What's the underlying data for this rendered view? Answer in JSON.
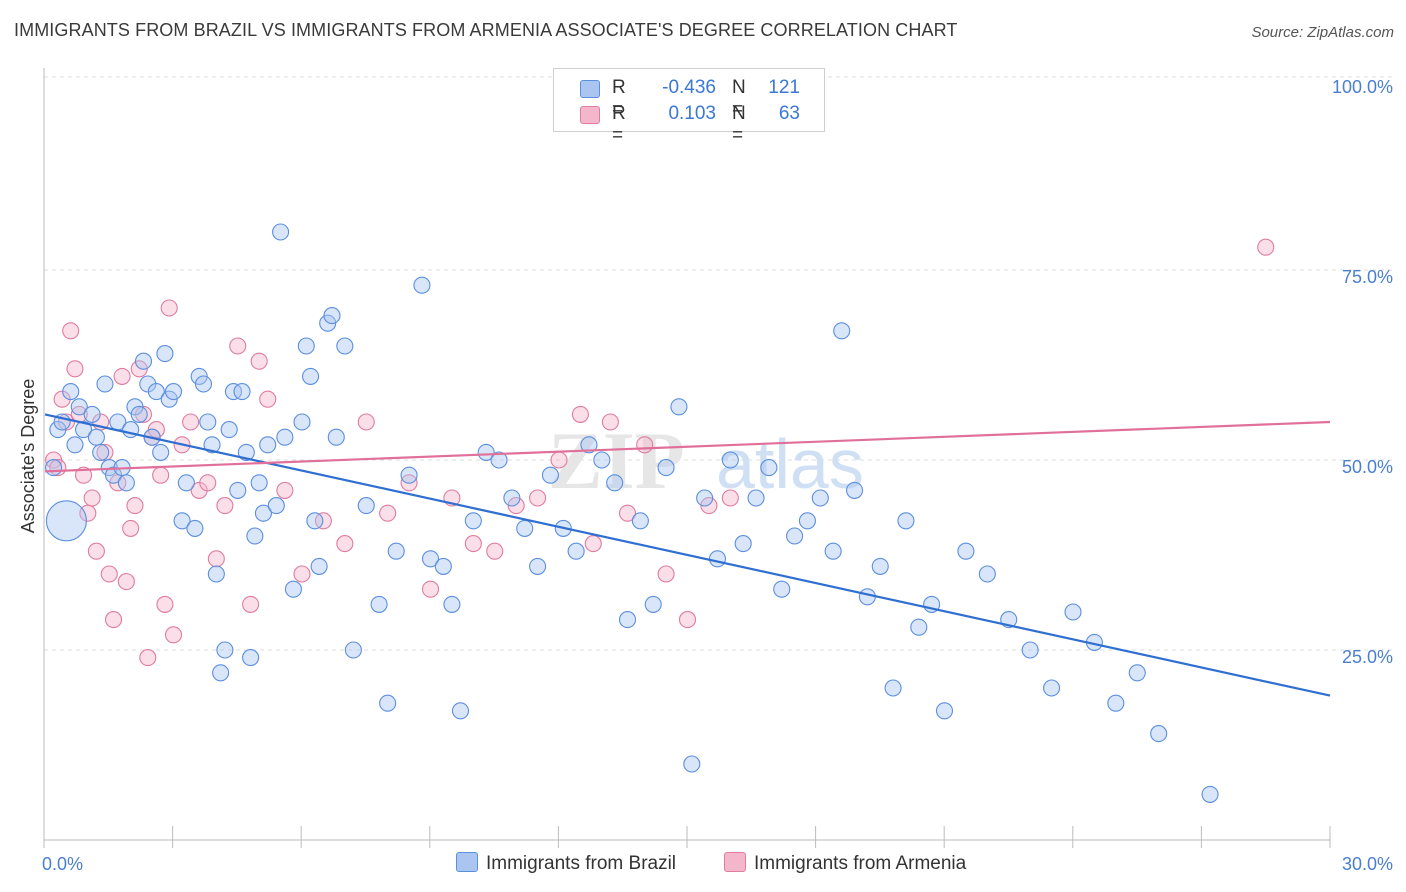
{
  "title": "IMMIGRANTS FROM BRAZIL VS IMMIGRANTS FROM ARMENIA ASSOCIATE'S DEGREE CORRELATION CHART",
  "source": "Source: ZipAtlas.com",
  "watermark": {
    "zip": "ZIP",
    "atlas": "atlas"
  },
  "colors": {
    "blue": "#5b8fe0",
    "blue_fill": "#aac6f0",
    "pink": "#e07ca0",
    "pink_fill": "#f4b6cb",
    "blue_line": "#2f6fd1",
    "pink_line": "#e0709a",
    "accent_text": "#3a78d4"
  },
  "legend": {
    "rows": [
      {
        "r_label": "R =",
        "r_value": "-0.436",
        "n_label": "N =",
        "n_value": "121",
        "color": "#aac6f0",
        "edge": "#5b8fe0"
      },
      {
        "r_label": "R =",
        "r_value": "0.103",
        "n_label": "N =",
        "n_value": "63",
        "color": "#f4b6cb",
        "edge": "#e07ca0"
      }
    ]
  },
  "bottom_legend": {
    "brazil": "Immigrants from Brazil",
    "armenia": "Immigrants from Armenia"
  },
  "chart_data": {
    "type": "scatter",
    "title": "IMMIGRANTS FROM BRAZIL VS IMMIGRANTS FROM ARMENIA ASSOCIATE'S DEGREE CORRELATION CHART",
    "xlabel": "",
    "ylabel": "Associate's Degree",
    "xlim": [
      0,
      30
    ],
    "ylim": [
      0,
      105
    ],
    "x_tick_labels": [
      "0.0%",
      "30.0%"
    ],
    "y_ticks": [
      25,
      50,
      75,
      100
    ],
    "y_tick_labels": [
      "25.0%",
      "50.0%",
      "75.0%",
      "100.0%"
    ],
    "grid": true,
    "series": [
      {
        "name": "Immigrants from Brazil",
        "trend": {
          "x": [
            0,
            30
          ],
          "y": [
            56,
            19
          ]
        },
        "points": [
          [
            0.2,
            49
          ],
          [
            0.3,
            54
          ],
          [
            0.4,
            55
          ],
          [
            0.6,
            59
          ],
          [
            0.7,
            52
          ],
          [
            0.8,
            57
          ],
          [
            0.9,
            54
          ],
          [
            1.1,
            56
          ],
          [
            1.2,
            53
          ],
          [
            1.3,
            51
          ],
          [
            1.4,
            60
          ],
          [
            1.5,
            49
          ],
          [
            1.6,
            48
          ],
          [
            1.7,
            55
          ],
          [
            1.8,
            49
          ],
          [
            1.9,
            47
          ],
          [
            2.0,
            54
          ],
          [
            2.1,
            57
          ],
          [
            2.2,
            56
          ],
          [
            2.3,
            63
          ],
          [
            2.4,
            60
          ],
          [
            2.5,
            53
          ],
          [
            2.6,
            59
          ],
          [
            2.7,
            51
          ],
          [
            2.8,
            64
          ],
          [
            2.9,
            58
          ],
          [
            3.0,
            59
          ],
          [
            3.2,
            42
          ],
          [
            3.3,
            47
          ],
          [
            3.5,
            41
          ],
          [
            3.6,
            61
          ],
          [
            3.7,
            60
          ],
          [
            3.8,
            55
          ],
          [
            3.9,
            52
          ],
          [
            4.0,
            35
          ],
          [
            4.1,
            22
          ],
          [
            4.2,
            25
          ],
          [
            4.3,
            54
          ],
          [
            4.4,
            59
          ],
          [
            4.5,
            46
          ],
          [
            4.6,
            59
          ],
          [
            4.7,
            51
          ],
          [
            4.8,
            24
          ],
          [
            4.9,
            40
          ],
          [
            5.0,
            47
          ],
          [
            5.1,
            43
          ],
          [
            5.2,
            52
          ],
          [
            5.4,
            44
          ],
          [
            5.5,
            80
          ],
          [
            5.6,
            53
          ],
          [
            5.8,
            33
          ],
          [
            6.0,
            55
          ],
          [
            6.1,
            65
          ],
          [
            6.2,
            61
          ],
          [
            6.3,
            42
          ],
          [
            6.4,
            36
          ],
          [
            6.6,
            68
          ],
          [
            6.7,
            69
          ],
          [
            6.8,
            53
          ],
          [
            7.0,
            65
          ],
          [
            7.2,
            25
          ],
          [
            7.5,
            44
          ],
          [
            7.8,
            31
          ],
          [
            8.0,
            18
          ],
          [
            8.2,
            38
          ],
          [
            8.5,
            48
          ],
          [
            8.8,
            73
          ],
          [
            9.0,
            37
          ],
          [
            9.3,
            36
          ],
          [
            9.5,
            31
          ],
          [
            9.7,
            17
          ],
          [
            10.0,
            42
          ],
          [
            10.3,
            51
          ],
          [
            10.6,
            50
          ],
          [
            10.9,
            45
          ],
          [
            11.2,
            41
          ],
          [
            11.5,
            36
          ],
          [
            11.8,
            48
          ],
          [
            12.1,
            41
          ],
          [
            12.4,
            38
          ],
          [
            12.7,
            52
          ],
          [
            13.0,
            50
          ],
          [
            13.3,
            47
          ],
          [
            13.6,
            29
          ],
          [
            13.9,
            42
          ],
          [
            14.2,
            31
          ],
          [
            14.5,
            49
          ],
          [
            14.8,
            57
          ],
          [
            15.1,
            10
          ],
          [
            15.4,
            45
          ],
          [
            15.7,
            37
          ],
          [
            16.0,
            50
          ],
          [
            16.3,
            39
          ],
          [
            16.6,
            45
          ],
          [
            16.9,
            49
          ],
          [
            17.2,
            33
          ],
          [
            17.5,
            40
          ],
          [
            17.8,
            42
          ],
          [
            18.1,
            45
          ],
          [
            18.4,
            38
          ],
          [
            18.6,
            67
          ],
          [
            18.9,
            46
          ],
          [
            19.2,
            32
          ],
          [
            19.5,
            36
          ],
          [
            19.8,
            20
          ],
          [
            20.1,
            42
          ],
          [
            20.4,
            28
          ],
          [
            20.7,
            31
          ],
          [
            21.0,
            17
          ],
          [
            21.5,
            38
          ],
          [
            22.0,
            35
          ],
          [
            22.5,
            29
          ],
          [
            23.0,
            25
          ],
          [
            23.5,
            20
          ],
          [
            24.0,
            30
          ],
          [
            24.5,
            26
          ],
          [
            25.0,
            18
          ],
          [
            25.5,
            22
          ],
          [
            26.0,
            14
          ],
          [
            27.2,
            6
          ],
          [
            0.5,
            42
          ]
        ]
      },
      {
        "name": "Immigrants from Armenia",
        "trend": {
          "x": [
            0,
            30
          ],
          "y": [
            48.5,
            55
          ]
        },
        "points": [
          [
            0.2,
            50
          ],
          [
            0.3,
            49
          ],
          [
            0.4,
            58
          ],
          [
            0.5,
            55
          ],
          [
            0.6,
            67
          ],
          [
            0.7,
            62
          ],
          [
            0.8,
            56
          ],
          [
            0.9,
            48
          ],
          [
            1.0,
            43
          ],
          [
            1.1,
            45
          ],
          [
            1.2,
            38
          ],
          [
            1.3,
            55
          ],
          [
            1.4,
            51
          ],
          [
            1.5,
            35
          ],
          [
            1.6,
            29
          ],
          [
            1.7,
            47
          ],
          [
            1.8,
            61
          ],
          [
            1.9,
            34
          ],
          [
            2.0,
            41
          ],
          [
            2.1,
            44
          ],
          [
            2.2,
            62
          ],
          [
            2.3,
            56
          ],
          [
            2.4,
            24
          ],
          [
            2.5,
            53
          ],
          [
            2.6,
            54
          ],
          [
            2.7,
            48
          ],
          [
            2.8,
            31
          ],
          [
            2.9,
            70
          ],
          [
            3.0,
            27
          ],
          [
            3.2,
            52
          ],
          [
            3.4,
            55
          ],
          [
            3.6,
            46
          ],
          [
            3.8,
            47
          ],
          [
            4.0,
            37
          ],
          [
            4.2,
            44
          ],
          [
            4.5,
            65
          ],
          [
            4.8,
            31
          ],
          [
            5.0,
            63
          ],
          [
            5.2,
            58
          ],
          [
            5.6,
            46
          ],
          [
            6.0,
            35
          ],
          [
            6.5,
            42
          ],
          [
            7.0,
            39
          ],
          [
            7.5,
            55
          ],
          [
            8.0,
            43
          ],
          [
            8.5,
            47
          ],
          [
            9.0,
            33
          ],
          [
            9.5,
            45
          ],
          [
            10.0,
            39
          ],
          [
            10.5,
            38
          ],
          [
            11.0,
            44
          ],
          [
            11.5,
            45
          ],
          [
            12.0,
            50
          ],
          [
            12.5,
            56
          ],
          [
            12.8,
            39
          ],
          [
            13.2,
            55
          ],
          [
            13.6,
            43
          ],
          [
            14.0,
            52
          ],
          [
            14.5,
            35
          ],
          [
            15.0,
            29
          ],
          [
            15.5,
            44
          ],
          [
            16.0,
            45
          ],
          [
            28.5,
            78
          ]
        ]
      }
    ]
  }
}
